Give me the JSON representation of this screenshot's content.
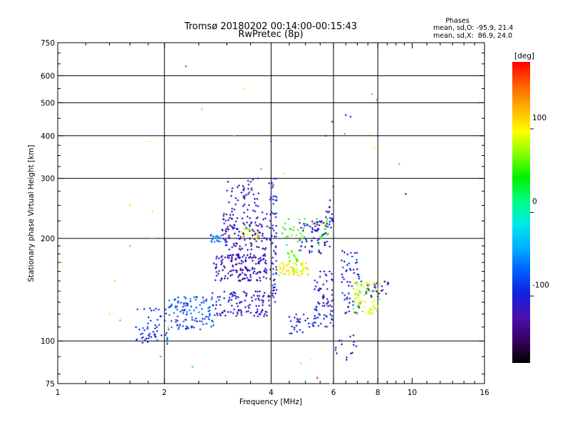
{
  "header": {
    "title": "Tromsø 20180202 00:14:00-00:15:43",
    "subtitle": "RwPretec (8p)"
  },
  "stats": {
    "title": "Phases",
    "line_o": "mean, sd,O: -95.9, 21.4",
    "line_x": "mean, sd,X:  86.9, 24.0"
  },
  "chart_data": {
    "type": "scatter",
    "title": "Tromsø 20180202 00:14:00-00:15:43",
    "subtitle": "RwPretec (8p)",
    "xlabel": "Frequency [MHz]",
    "ylabel": "Stationary phase Virtual Height [km]",
    "x_scale": "log",
    "y_scale": "log",
    "xlim": [
      1,
      16
    ],
    "ylim": [
      75,
      750
    ],
    "x_ticks": [
      1,
      2,
      4,
      6,
      8,
      10,
      16
    ],
    "x_tick_labels": [
      "1",
      "2",
      "4",
      "6",
      "8",
      "10",
      "16"
    ],
    "x_minor_ticks": [
      1.2,
      1.4,
      1.6,
      1.8,
      2.5,
      3,
      3.5,
      4.5,
      5,
      5.5,
      6.5,
      7,
      7.5,
      8.5,
      9,
      9.5,
      11,
      12,
      13,
      14,
      15
    ],
    "x_grid": [
      2,
      4,
      6,
      8
    ],
    "y_ticks": [
      75,
      100,
      200,
      300,
      400,
      500,
      600,
      750
    ],
    "y_tick_labels": [
      "75",
      "100",
      "200",
      "300",
      "400",
      "500",
      "600",
      "750"
    ],
    "y_minor_ticks": [
      80,
      90,
      110,
      120,
      130,
      140,
      150,
      160,
      170,
      180,
      190,
      225,
      250,
      275,
      325,
      350,
      375,
      450,
      550,
      650,
      700
    ],
    "y_grid": [
      100,
      200,
      300,
      400,
      500,
      600
    ],
    "grid": true,
    "colorbar": {
      "label": "[deg]",
      "range": [
        -180,
        180
      ],
      "ticks": [
        100,
        0,
        -100
      ],
      "tick_labels": [
        "100",
        "0",
        "-100"
      ],
      "colormap": [
        "#000000",
        "#3a0060",
        "#4b10b0",
        "#1020e0",
        "#0060ff",
        "#00b0ff",
        "#00e8e8",
        "#00ff80",
        "#00f000",
        "#80ff00",
        "#ffff00",
        "#ffb000",
        "#ff6000",
        "#ff0000"
      ]
    },
    "series": [
      {
        "values": [
          [
            1.03,
            170
          ],
          [
            1.85,
            240
          ],
          [
            2.3,
            640
          ],
          [
            2.55,
            480
          ],
          [
            3.35,
            550
          ],
          [
            7.7,
            530
          ],
          [
            7.95,
            510
          ],
          [
            6.5,
            460
          ],
          [
            6.7,
            455
          ],
          [
            5.95,
            440
          ],
          [
            5.7,
            400
          ],
          [
            6.45,
            405
          ],
          [
            3.15,
            400
          ],
          [
            1.82,
            385
          ],
          [
            2.0,
            330
          ],
          [
            9.2,
            330
          ],
          [
            9.6,
            270
          ],
          [
            1.6,
            250
          ],
          [
            1.6,
            190
          ],
          [
            1.85,
            200
          ],
          [
            4.0,
            385
          ],
          [
            3.75,
            320
          ],
          [
            4.35,
            310
          ],
          [
            1.95,
            90
          ],
          [
            2.05,
            110
          ],
          [
            5.4,
            78
          ],
          [
            4.85,
            86
          ],
          [
            7.6,
            405
          ],
          [
            7.8,
            370
          ],
          [
            2.4,
            84
          ],
          [
            1.5,
            115
          ],
          [
            1.4,
            120
          ],
          [
            1.45,
            150
          ],
          [
            5.9,
            75
          ],
          [
            5.2,
            88
          ]
        ],
        "values_phase": [
          90,
          85,
          -60,
          70,
          95,
          60,
          40,
          -100,
          -105,
          -110,
          -120,
          30,
          140,
          95,
          150,
          130,
          -120,
          110,
          60,
          150,
          -105,
          20,
          90,
          -30,
          70,
          170,
          80,
          100,
          95,
          20,
          50,
          100,
          80,
          110,
          100
        ]
      }
    ],
    "clusters": [
      {
        "f": [
          1.65,
          2.05
        ],
        "h": [
          98,
          125
        ],
        "phase": -95,
        "n": 55
      },
      {
        "f": [
          2.05,
          2.8
        ],
        "h": [
          108,
          135
        ],
        "phase": -80,
        "n": 110
      },
      {
        "f": [
          2.7,
          4.0
        ],
        "h": [
          118,
          140
        ],
        "phase": -110,
        "n": 110
      },
      {
        "f": [
          2.75,
          3.9
        ],
        "h": [
          150,
          180
        ],
        "phase": -115,
        "n": 160
      },
      {
        "f": [
          2.9,
          3.9
        ],
        "h": [
          185,
          240
        ],
        "phase": -120,
        "n": 130
      },
      {
        "f": [
          3.0,
          3.7
        ],
        "h": [
          240,
          300
        ],
        "phase": -115,
        "n": 45
      },
      {
        "f": [
          2.7,
          2.9
        ],
        "h": [
          195,
          205
        ],
        "phase": -60,
        "n": 20
      },
      {
        "f": [
          3.95,
          4.15
        ],
        "h": [
          130,
          300
        ],
        "phase": -105,
        "n": 70
      },
      {
        "f": [
          4.2,
          5.1
        ],
        "h": [
          155,
          170
        ],
        "phase": 95,
        "n": 60
      },
      {
        "f": [
          4.3,
          5.8
        ],
        "h": [
          190,
          230
        ],
        "phase": 40,
        "n": 45
      },
      {
        "f": [
          4.8,
          5.6
        ],
        "h": [
          180,
          225
        ],
        "phase": -110,
        "n": 55
      },
      {
        "f": [
          5.3,
          6.0
        ],
        "h": [
          110,
          160
        ],
        "phase": -105,
        "n": 70
      },
      {
        "f": [
          4.5,
          5.3
        ],
        "h": [
          105,
          120
        ],
        "phase": -100,
        "n": 30
      },
      {
        "f": [
          5.6,
          6.0
        ],
        "h": [
          185,
          290
        ],
        "phase": -110,
        "n": 30
      },
      {
        "f": [
          6.3,
          7.2
        ],
        "h": [
          120,
          185
        ],
        "phase": -100,
        "n": 60
      },
      {
        "f": [
          6.8,
          8.1
        ],
        "h": [
          120,
          150
        ],
        "phase": 85,
        "n": 75
      },
      {
        "f": [
          7.4,
          8.6
        ],
        "h": [
          135,
          150
        ],
        "phase": -100,
        "n": 25
      },
      {
        "f": [
          6.0,
          7.0
        ],
        "h": [
          88,
          105
        ],
        "phase": -110,
        "n": 15
      },
      {
        "f": [
          3.3,
          3.7
        ],
        "h": [
          200,
          215
        ],
        "phase": 80,
        "n": 15
      },
      {
        "f": [
          4.4,
          4.8
        ],
        "h": [
          170,
          185
        ],
        "phase": 60,
        "n": 15
      }
    ]
  }
}
